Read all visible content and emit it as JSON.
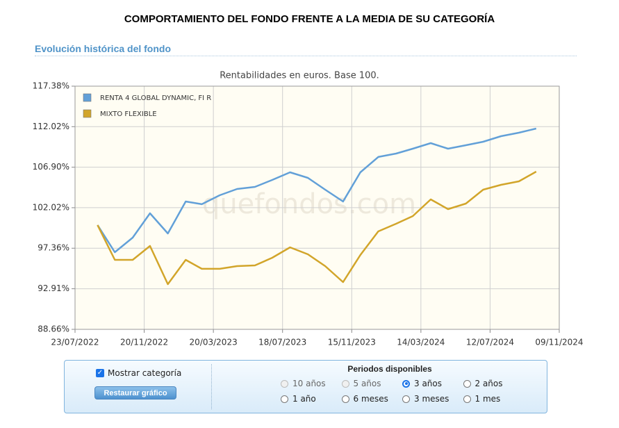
{
  "page_title": "COMPORTAMIENTO DEL FONDO FRENTE A LA MEDIA DE SU CATEGORÍA",
  "section_title": "Evolución histórica del fondo",
  "chart_data": {
    "type": "line",
    "title": "Rentabilidades en euros. Base 100.",
    "watermark": "quefondos.com",
    "log_scale": true,
    "grid": true,
    "legend": "top-left",
    "x": [
      "31/08/2022",
      "30/09/2022",
      "31/10/2022",
      "30/11/2022",
      "31/12/2022",
      "31/01/2023",
      "28/02/2023",
      "31/03/2023",
      "30/04/2023",
      "31/05/2023",
      "30/06/2023",
      "31/07/2023",
      "31/08/2023",
      "30/09/2023",
      "31/10/2023",
      "30/11/2023",
      "31/12/2023",
      "31/01/2024",
      "29/02/2024",
      "31/03/2024",
      "30/04/2024",
      "31/05/2024",
      "30/06/2024",
      "31/07/2024",
      "31/08/2024",
      "30/09/2024"
    ],
    "xlim": [
      "23/07/2022",
      "09/11/2024"
    ],
    "xticks": [
      "23/07/2022",
      "20/11/2022",
      "20/03/2023",
      "18/07/2023",
      "15/11/2023",
      "14/03/2024",
      "12/07/2024",
      "09/11/2024"
    ],
    "ylim": [
      88.66,
      117.38
    ],
    "yticks": [
      {
        "value": 88.66,
        "label": "88.66%"
      },
      {
        "value": 92.91,
        "label": "92.91%"
      },
      {
        "value": 97.36,
        "label": "97.36%"
      },
      {
        "value": 102.02,
        "label": "102.02%"
      },
      {
        "value": 106.9,
        "label": "106.90%"
      },
      {
        "value": 112.02,
        "label": "112.02%"
      },
      {
        "value": 117.38,
        "label": "117.38%"
      }
    ],
    "series": [
      {
        "name": "RENTA 4 GLOBAL DYNAMIC, FI R",
        "color": "#62a0d8",
        "values": [
          100,
          96.91,
          98.56,
          101.36,
          99.03,
          102.75,
          102.43,
          103.5,
          104.25,
          104.5,
          105.34,
          106.27,
          105.59,
          104.16,
          102.75,
          106.27,
          108.17,
          108.6,
          109.21,
          109.91,
          109.21,
          109.65,
          110.09,
          110.8,
          111.24,
          111.78
        ]
      },
      {
        "name": "MIXTO FLEXIBLE",
        "color": "#d2a52a",
        "values": [
          100,
          96.06,
          96.06,
          97.61,
          93.4,
          96.06,
          95.07,
          95.07,
          95.37,
          95.45,
          96.29,
          97.46,
          96.68,
          95.37,
          93.63,
          96.6,
          99.27,
          100.15,
          101.04,
          103.0,
          101.85,
          102.51,
          104.16,
          104.75,
          105.17,
          106.36
        ]
      }
    ]
  },
  "controls": {
    "show_category": {
      "label": "Mostrar categoría",
      "checked": true
    },
    "restore_button": "Restaurar gráfico",
    "periods_title": "Periodos disponibles",
    "periods": [
      {
        "label": "10 años",
        "disabled": true,
        "checked": false
      },
      {
        "label": "5 años",
        "disabled": true,
        "checked": false
      },
      {
        "label": "3 años",
        "disabled": false,
        "checked": true
      },
      {
        "label": "2 años",
        "disabled": false,
        "checked": false
      },
      {
        "label": "1 año",
        "disabled": false,
        "checked": false
      },
      {
        "label": "6 meses",
        "disabled": false,
        "checked": false
      },
      {
        "label": "3 meses",
        "disabled": false,
        "checked": false
      },
      {
        "label": "1 mes",
        "disabled": false,
        "checked": false
      }
    ]
  }
}
